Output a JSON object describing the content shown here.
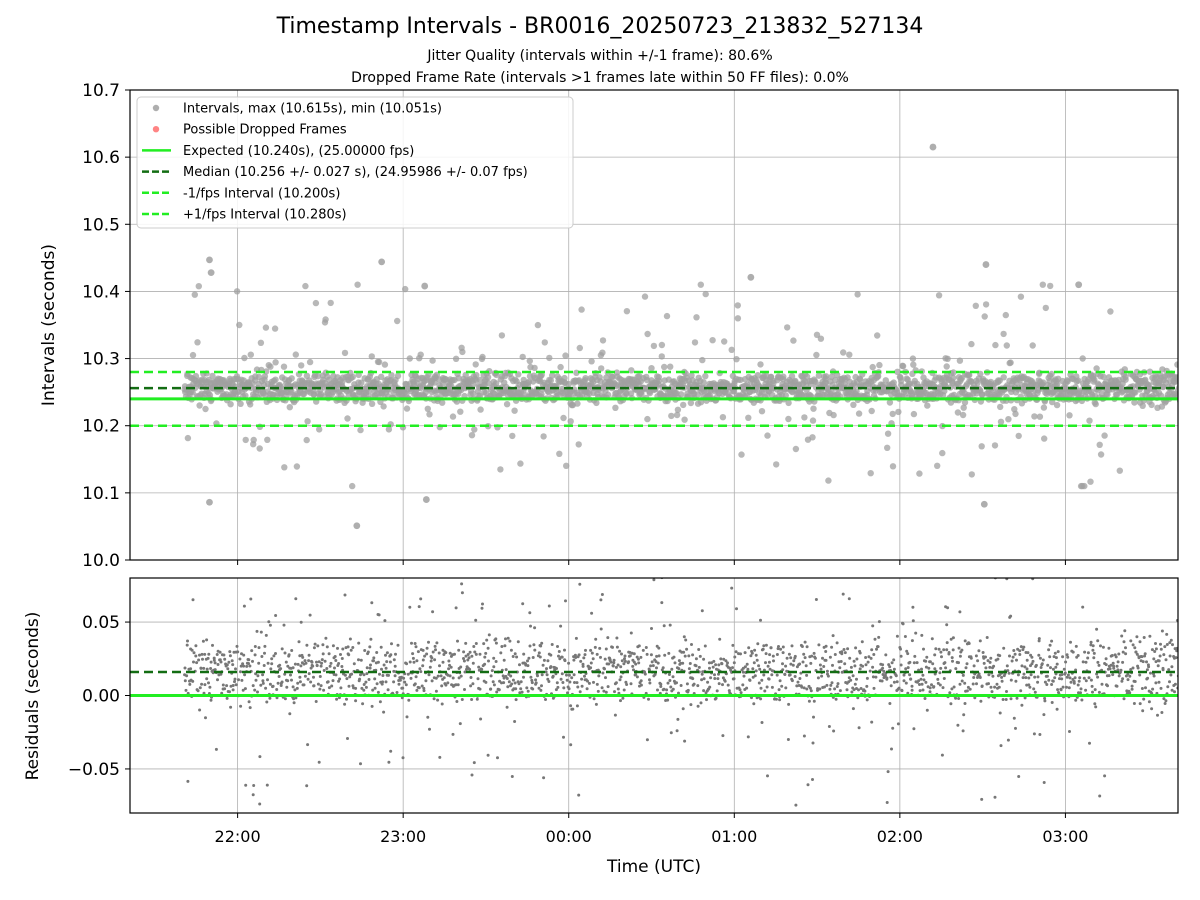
{
  "chart_data": [
    {
      "type": "scatter",
      "title": "Timestamp Intervals - BR0016_20250723_213832_527134",
      "subtitle_lines": [
        "Jitter Quality (intervals within +/-1 frame): 80.6%",
        "Dropped Frame Rate (intervals >1 frames late within 50 FF files): 0.0%"
      ],
      "ylabel": "Intervals (seconds)",
      "xlabel": "",
      "ylim": [
        10.0,
        10.7
      ],
      "yticks": [
        "10.0",
        "10.1",
        "10.2",
        "10.3",
        "10.4",
        "10.5",
        "10.6",
        "10.7"
      ],
      "x_range_hours": [
        21.35,
        27.68
      ],
      "xticks": [
        "22:00",
        "23:00",
        "00:00",
        "01:00",
        "02:00",
        "03:00"
      ],
      "xtick_hours": [
        22,
        23,
        24,
        25,
        26,
        27
      ],
      "grid": true,
      "legend_position": "top-left",
      "legend": [
        {
          "label": "Intervals, max (10.615s), min (10.051s)",
          "kind": "marker",
          "color": "#a0a0a0"
        },
        {
          "label": "Possible Dropped Frames",
          "kind": "marker",
          "color": "#ff6f6f"
        },
        {
          "label": "Expected (10.240s), (25.00000 fps)",
          "kind": "solid",
          "color": "#22ee22"
        },
        {
          "label": "Median (10.256 +/- 0.027 s), (24.95986 +/- 0.07 fps)",
          "kind": "dashed",
          "color": "#136d13"
        },
        {
          "label": "-1/fps Interval (10.200s)",
          "kind": "dashed",
          "color": "#22ee22"
        },
        {
          "label": "+1/fps Interval (10.280s)",
          "kind": "dashed",
          "color": "#22ee22"
        }
      ],
      "reference_lines": [
        {
          "name": "Expected",
          "y": 10.24,
          "style": "solid",
          "color": "#22ee22"
        },
        {
          "name": "Median",
          "y": 10.256,
          "style": "dashed",
          "color": "#136d13"
        },
        {
          "name": "-1/fps Interval",
          "y": 10.2,
          "style": "dashed",
          "color": "#22ee22"
        },
        {
          "name": "+1/fps Interval",
          "y": 10.28,
          "style": "dashed",
          "color": "#22ee22"
        }
      ],
      "series": [
        {
          "name": "Intervals",
          "color": "#a0a0a0",
          "notable_points": [
            {
              "time": "02:12",
              "hour": 26.2,
              "y": 10.615
            },
            {
              "time": "22:43",
              "hour": 22.72,
              "y": 10.051
            },
            {
              "time": "21:50",
              "hour": 21.83,
              "y": 10.447
            },
            {
              "time": "21:50",
              "hour": 21.84,
              "y": 10.428
            },
            {
              "time": "21:50",
              "hour": 21.83,
              "y": 10.086
            },
            {
              "time": "22:52",
              "hour": 22.87,
              "y": 10.444
            },
            {
              "time": "23:08",
              "hour": 23.13,
              "y": 10.408
            },
            {
              "time": "23:08",
              "hour": 23.14,
              "y": 10.09
            },
            {
              "time": "01:06",
              "hour": 25.1,
              "y": 10.421
            },
            {
              "time": "02:31",
              "hour": 26.52,
              "y": 10.44
            },
            {
              "time": "02:31",
              "hour": 26.51,
              "y": 10.083
            },
            {
              "time": "03:05",
              "hour": 27.08,
              "y": 10.41
            }
          ],
          "bulk": {
            "center": 10.256,
            "spread": 0.027
          }
        },
        {
          "name": "Possible Dropped Frames",
          "color": "#ff6f6f",
          "values": []
        }
      ]
    },
    {
      "type": "scatter",
      "ylabel": "Residuals (seconds)",
      "xlabel": "Time (UTC)",
      "ylim": [
        -0.08,
        0.08
      ],
      "yticks": [
        "−0.05",
        "0.00",
        "0.05"
      ],
      "ytick_values": [
        -0.05,
        0.0,
        0.05
      ],
      "xticks": [
        "22:00",
        "23:00",
        "00:00",
        "01:00",
        "02:00",
        "03:00"
      ],
      "grid": true,
      "reference_lines": [
        {
          "name": "Expected",
          "y": 0.0,
          "style": "solid",
          "color": "#22ee22"
        },
        {
          "name": "Median",
          "y": 0.016,
          "style": "dashed",
          "color": "#136d13"
        }
      ],
      "series": [
        {
          "name": "Residuals",
          "color": "#777777",
          "bulk": {
            "center": 0.016,
            "spread": 0.027
          }
        }
      ]
    }
  ]
}
